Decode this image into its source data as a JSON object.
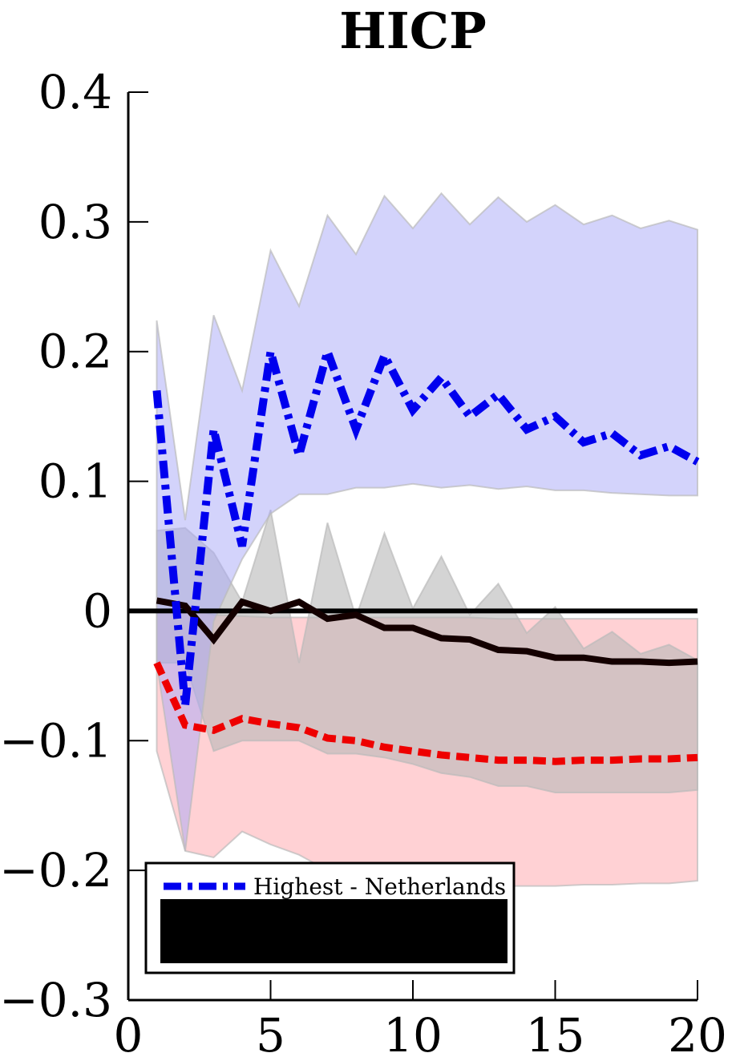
{
  "chart_data": {
    "type": "line",
    "title": "HICP",
    "xlabel": "",
    "ylabel": "",
    "xlim": [
      0,
      20
    ],
    "ylim": [
      -0.3,
      0.4
    ],
    "xticks": [
      0,
      5,
      10,
      15,
      20
    ],
    "xtick_labels": [
      "0",
      "5",
      "10",
      "15",
      "20"
    ],
    "yticks": [
      0.4,
      0.3,
      0.2,
      0.1,
      0,
      -0.1,
      -0.2,
      -0.3
    ],
    "ytick_labels": [
      "0.4",
      "0.3",
      "0.2",
      "0.1",
      "0",
      "−0.1",
      "−0.2",
      "−0.3"
    ],
    "x": [
      1,
      2,
      3,
      4,
      5,
      6,
      7,
      8,
      9,
      10,
      11,
      12,
      13,
      14,
      15,
      16,
      17,
      18,
      19,
      20
    ],
    "zero_line": 0,
    "legend": {
      "position": "bottom-left",
      "entries": [
        {
          "label": "Highest - Netherlands",
          "series": "highest"
        }
      ]
    },
    "bands": [
      {
        "name": "",
        "color": "#ffb3b8",
        "opacity": 0.6,
        "upper": [
          0.0,
          0.003,
          -0.003,
          -0.004,
          -0.005,
          -0.005,
          -0.005,
          -0.005,
          -0.005,
          -0.005,
          -0.005,
          -0.005,
          -0.006,
          -0.006,
          -0.006,
          -0.006,
          -0.006,
          -0.006,
          -0.006,
          -0.006
        ],
        "lower": [
          -0.108,
          -0.185,
          -0.19,
          -0.17,
          -0.18,
          -0.188,
          -0.2,
          -0.205,
          -0.208,
          -0.21,
          -0.212,
          -0.212,
          -0.212,
          -0.212,
          -0.212,
          -0.211,
          -0.211,
          -0.21,
          -0.21,
          -0.208
        ]
      },
      {
        "name": "",
        "color": "#b8b8b8",
        "opacity": 0.6,
        "upper": [
          0.062,
          0.064,
          0.045,
          0.007,
          0.078,
          -0.04,
          0.068,
          -0.005,
          0.06,
          0.002,
          0.042,
          -0.003,
          0.021,
          -0.017,
          0.003,
          -0.029,
          -0.016,
          -0.033,
          -0.026,
          -0.038
        ],
        "lower": [
          -0.04,
          -0.04,
          -0.108,
          -0.1,
          -0.1,
          -0.1,
          -0.11,
          -0.11,
          -0.113,
          -0.118,
          -0.125,
          -0.128,
          -0.135,
          -0.135,
          -0.14,
          -0.14,
          -0.14,
          -0.14,
          -0.14,
          -0.138
        ]
      },
      {
        "name": "",
        "color": "#a8a8f8",
        "opacity": 0.5,
        "upper": [
          0.224,
          0.07,
          0.228,
          0.17,
          0.278,
          0.235,
          0.305,
          0.275,
          0.32,
          0.295,
          0.322,
          0.298,
          0.319,
          0.3,
          0.313,
          0.298,
          0.305,
          0.295,
          0.301,
          0.294
        ],
        "lower": [
          -0.04,
          -0.185,
          -0.008,
          0.04,
          0.075,
          0.09,
          0.09,
          0.095,
          0.095,
          0.098,
          0.095,
          0.097,
          0.094,
          0.096,
          0.093,
          0.093,
          0.091,
          0.09,
          0.089,
          0.089
        ]
      }
    ],
    "series": [
      {
        "id": "lowest",
        "name": "",
        "color": "#ee0000",
        "style": "dashed",
        "values": [
          -0.04,
          -0.088,
          -0.092,
          -0.083,
          -0.087,
          -0.09,
          -0.098,
          -0.1,
          -0.105,
          -0.108,
          -0.111,
          -0.113,
          -0.115,
          -0.115,
          -0.116,
          -0.115,
          -0.115,
          -0.114,
          -0.114,
          -0.113
        ]
      },
      {
        "id": "average",
        "name": "",
        "color": "#140000",
        "style": "solid",
        "values": [
          0.008,
          0.004,
          -0.022,
          0.007,
          0.0,
          0.007,
          -0.006,
          -0.003,
          -0.013,
          -0.013,
          -0.021,
          -0.022,
          -0.03,
          -0.031,
          -0.036,
          -0.036,
          -0.039,
          -0.039,
          -0.04,
          -0.039
        ]
      },
      {
        "id": "highest",
        "name": "Highest - Netherlands",
        "color": "#0000ee",
        "style": "dashdot",
        "values": [
          0.17,
          -0.073,
          0.14,
          0.05,
          0.2,
          0.12,
          0.2,
          0.14,
          0.197,
          0.155,
          0.18,
          0.15,
          0.167,
          0.14,
          0.15,
          0.13,
          0.137,
          0.12,
          0.127,
          0.115
        ]
      }
    ]
  }
}
